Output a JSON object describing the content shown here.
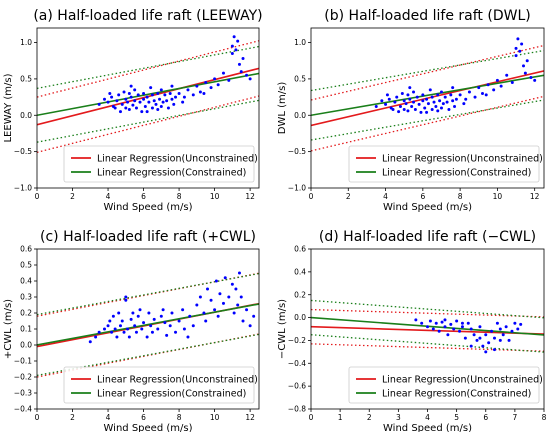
{
  "chart_data": [
    {
      "type": "scatter",
      "title": "(a) Half-loaded life raft (LEEWAY)",
      "xlabel": "Wind Speed (m/s)",
      "ylabel": "LEEWAY (m/s)",
      "xlim": [
        0,
        12.5
      ],
      "ylim": [
        -1.0,
        1.2
      ],
      "xticks": [
        0,
        2,
        4,
        6,
        8,
        10,
        12
      ],
      "yticks": [
        -1.0,
        -0.5,
        0.0,
        0.5,
        1.0
      ],
      "ytick_labels": [
        "−1.0",
        "−0.5",
        "0.0",
        "0.5",
        "1.0"
      ],
      "legend_position": "lower-right",
      "regression": {
        "unconstrained": {
          "name": "Linear Regression(Unconstrained)",
          "intercept": -0.13,
          "slope": 0.062,
          "band": 0.38,
          "color": "#e31a1c"
        },
        "constrained": {
          "name": "Linear Regression(Constrained)",
          "intercept": 0.0,
          "slope": 0.046,
          "band": 0.37,
          "color": "#1a7f1a"
        }
      },
      "points": [
        [
          4.0,
          0.18
        ],
        [
          4.2,
          0.25
        ],
        [
          4.3,
          0.12
        ],
        [
          4.5,
          0.2
        ],
        [
          4.6,
          0.28
        ],
        [
          4.7,
          0.05
        ],
        [
          4.8,
          0.15
        ],
        [
          4.9,
          0.32
        ],
        [
          5.0,
          0.1
        ],
        [
          5.0,
          0.22
        ],
        [
          5.1,
          0.18
        ],
        [
          5.2,
          0.3
        ],
        [
          5.2,
          0.08
        ],
        [
          5.3,
          0.25
        ],
        [
          5.4,
          0.14
        ],
        [
          5.5,
          0.35
        ],
        [
          5.5,
          0.2
        ],
        [
          5.6,
          0.1
        ],
        [
          5.7,
          0.28
        ],
        [
          5.8,
          0.18
        ],
        [
          5.9,
          0.05
        ],
        [
          6.0,
          0.22
        ],
        [
          6.0,
          0.3
        ],
        [
          6.1,
          0.12
        ],
        [
          6.2,
          0.25
        ],
        [
          6.3,
          0.18
        ],
        [
          6.4,
          0.38
        ],
        [
          6.5,
          0.1
        ],
        [
          6.5,
          0.28
        ],
        [
          6.6,
          0.2
        ],
        [
          6.7,
          0.15
        ],
        [
          6.8,
          0.3
        ],
        [
          6.9,
          0.22
        ],
        [
          7.0,
          0.12
        ],
        [
          7.0,
          0.35
        ],
        [
          7.1,
          0.18
        ],
        [
          7.2,
          0.28
        ],
        [
          7.3,
          0.2
        ],
        [
          7.4,
          0.1
        ],
        [
          7.5,
          0.3
        ],
        [
          7.6,
          0.22
        ],
        [
          7.7,
          0.15
        ],
        [
          7.8,
          0.25
        ],
        [
          8.0,
          0.3
        ],
        [
          8.2,
          0.18
        ],
        [
          8.5,
          0.35
        ],
        [
          8.8,
          0.28
        ],
        [
          9.0,
          0.4
        ],
        [
          9.2,
          0.32
        ],
        [
          9.5,
          0.45
        ],
        [
          9.8,
          0.38
        ],
        [
          10.0,
          0.5
        ],
        [
          10.2,
          0.42
        ],
        [
          10.5,
          0.58
        ],
        [
          10.8,
          0.48
        ],
        [
          11.0,
          0.85
        ],
        [
          11.0,
          0.95
        ],
        [
          11.1,
          1.08
        ],
        [
          11.2,
          0.9
        ],
        [
          11.3,
          1.02
        ],
        [
          11.4,
          0.7
        ],
        [
          11.5,
          0.6
        ],
        [
          11.6,
          0.78
        ],
        [
          11.8,
          0.55
        ],
        [
          12.0,
          0.5
        ],
        [
          3.5,
          0.15
        ],
        [
          3.8,
          0.22
        ],
        [
          4.1,
          0.3
        ],
        [
          4.4,
          0.1
        ],
        [
          5.3,
          0.4
        ],
        [
          6.2,
          0.05
        ],
        [
          6.8,
          0.08
        ],
        [
          7.6,
          0.4
        ],
        [
          8.3,
          0.25
        ],
        [
          9.4,
          0.3
        ]
      ]
    },
    {
      "type": "scatter",
      "title": "(b) Half-loaded life raft (DWL)",
      "xlabel": "Wind Speed (m/s)",
      "ylabel": "DWL (m/s)",
      "xlim": [
        0,
        12.5
      ],
      "ylim": [
        -1.0,
        1.2
      ],
      "xticks": [
        0,
        2,
        4,
        6,
        8,
        10,
        12
      ],
      "yticks": [
        -1.0,
        -0.5,
        0.0,
        0.5,
        1.0
      ],
      "ytick_labels": [
        "−1.0",
        "−0.5",
        "0.0",
        "0.5",
        "1.0"
      ],
      "legend_position": "lower-right",
      "regression": {
        "unconstrained": {
          "name": "Linear Regression(Unconstrained)",
          "intercept": -0.14,
          "slope": 0.06,
          "band": 0.35,
          "color": "#e31a1c"
        },
        "constrained": {
          "name": "Linear Regression(Constrained)",
          "intercept": 0.0,
          "slope": 0.044,
          "band": 0.34,
          "color": "#1a7f1a"
        }
      },
      "points": [
        [
          4.0,
          0.15
        ],
        [
          4.2,
          0.22
        ],
        [
          4.3,
          0.1
        ],
        [
          4.5,
          0.18
        ],
        [
          4.6,
          0.25
        ],
        [
          4.7,
          0.05
        ],
        [
          4.8,
          0.12
        ],
        [
          4.9,
          0.3
        ],
        [
          5.0,
          0.08
        ],
        [
          5.0,
          0.2
        ],
        [
          5.1,
          0.16
        ],
        [
          5.2,
          0.28
        ],
        [
          5.2,
          0.06
        ],
        [
          5.3,
          0.22
        ],
        [
          5.4,
          0.12
        ],
        [
          5.5,
          0.32
        ],
        [
          5.5,
          0.18
        ],
        [
          5.6,
          0.08
        ],
        [
          5.7,
          0.25
        ],
        [
          5.8,
          0.15
        ],
        [
          5.9,
          0.04
        ],
        [
          6.0,
          0.2
        ],
        [
          6.0,
          0.28
        ],
        [
          6.1,
          0.1
        ],
        [
          6.2,
          0.22
        ],
        [
          6.3,
          0.16
        ],
        [
          6.4,
          0.35
        ],
        [
          6.5,
          0.08
        ],
        [
          6.5,
          0.25
        ],
        [
          6.6,
          0.18
        ],
        [
          6.7,
          0.12
        ],
        [
          6.8,
          0.28
        ],
        [
          6.9,
          0.2
        ],
        [
          7.0,
          0.1
        ],
        [
          7.0,
          0.32
        ],
        [
          7.1,
          0.16
        ],
        [
          7.2,
          0.25
        ],
        [
          7.3,
          0.18
        ],
        [
          7.4,
          0.08
        ],
        [
          7.5,
          0.28
        ],
        [
          7.6,
          0.2
        ],
        [
          7.7,
          0.12
        ],
        [
          7.8,
          0.22
        ],
        [
          8.0,
          0.28
        ],
        [
          8.2,
          0.16
        ],
        [
          8.5,
          0.32
        ],
        [
          8.8,
          0.25
        ],
        [
          9.0,
          0.38
        ],
        [
          9.2,
          0.3
        ],
        [
          9.5,
          0.42
        ],
        [
          9.8,
          0.35
        ],
        [
          10.0,
          0.48
        ],
        [
          10.2,
          0.4
        ],
        [
          10.5,
          0.55
        ],
        [
          10.8,
          0.45
        ],
        [
          11.0,
          0.82
        ],
        [
          11.0,
          0.92
        ],
        [
          11.1,
          1.05
        ],
        [
          11.2,
          0.88
        ],
        [
          11.3,
          0.98
        ],
        [
          11.4,
          0.68
        ],
        [
          11.5,
          0.58
        ],
        [
          11.6,
          0.75
        ],
        [
          11.8,
          0.52
        ],
        [
          12.0,
          0.48
        ],
        [
          3.5,
          0.12
        ],
        [
          3.8,
          0.2
        ],
        [
          4.1,
          0.28
        ],
        [
          4.4,
          0.08
        ],
        [
          5.3,
          0.38
        ],
        [
          6.2,
          0.04
        ],
        [
          6.8,
          0.06
        ],
        [
          7.6,
          0.38
        ],
        [
          8.3,
          0.22
        ],
        [
          9.4,
          0.28
        ]
      ]
    },
    {
      "type": "scatter",
      "title": "(c) Half-loaded life raft (+CWL)",
      "xlabel": "Wind Speed (m/s)",
      "ylabel": "+CWL (m/s)",
      "xlim": [
        0,
        12.5
      ],
      "ylim": [
        -0.4,
        0.6
      ],
      "xticks": [
        0,
        2,
        4,
        6,
        8,
        10,
        12
      ],
      "yticks": [
        -0.4,
        -0.3,
        -0.2,
        -0.1,
        0.0,
        0.1,
        0.2,
        0.3,
        0.4,
        0.5,
        0.6
      ],
      "ytick_labels": [
        "−0.4",
        "−0.3",
        "−0.2",
        "−0.1",
        "0.0",
        "0.1",
        "0.2",
        "0.3",
        "0.4",
        "0.5",
        "0.6"
      ],
      "legend_position": "lower-right",
      "regression": {
        "unconstrained": {
          "name": "Linear Regression(Unconstrained)",
          "intercept": -0.01,
          "slope": 0.0215,
          "band": 0.19,
          "color": "#e31a1c"
        },
        "constrained": {
          "name": "Linear Regression(Constrained)",
          "intercept": 0.0,
          "slope": 0.0205,
          "band": 0.19,
          "color": "#1a7f1a"
        }
      },
      "points": [
        [
          3.0,
          0.02
        ],
        [
          3.3,
          0.05
        ],
        [
          3.5,
          0.08
        ],
        [
          3.8,
          0.1
        ],
        [
          4.0,
          0.12
        ],
        [
          4.1,
          0.15
        ],
        [
          4.2,
          0.08
        ],
        [
          4.3,
          0.18
        ],
        [
          4.4,
          0.1
        ],
        [
          4.5,
          0.05
        ],
        [
          4.6,
          0.2
        ],
        [
          4.7,
          0.12
        ],
        [
          4.8,
          0.15
        ],
        [
          4.9,
          0.08
        ],
        [
          5.0,
          0.28
        ],
        [
          5.0,
          0.3
        ],
        [
          5.1,
          0.1
        ],
        [
          5.2,
          0.05
        ],
        [
          5.3,
          0.16
        ],
        [
          5.4,
          0.2
        ],
        [
          5.5,
          0.12
        ],
        [
          5.6,
          0.08
        ],
        [
          5.7,
          0.18
        ],
        [
          5.8,
          0.22
        ],
        [
          5.9,
          0.1
        ],
        [
          6.0,
          0.14
        ],
        [
          6.2,
          0.05
        ],
        [
          6.3,
          0.2
        ],
        [
          6.4,
          0.12
        ],
        [
          6.5,
          0.08
        ],
        [
          6.6,
          0.16
        ],
        [
          6.8,
          0.1
        ],
        [
          7.0,
          0.18
        ],
        [
          7.1,
          0.22
        ],
        [
          7.2,
          0.14
        ],
        [
          7.3,
          0.06
        ],
        [
          7.5,
          0.12
        ],
        [
          7.6,
          0.2
        ],
        [
          7.8,
          0.08
        ],
        [
          8.0,
          0.15
        ],
        [
          8.2,
          0.22
        ],
        [
          8.3,
          0.1
        ],
        [
          8.5,
          0.05
        ],
        [
          8.6,
          0.18
        ],
        [
          8.8,
          0.12
        ],
        [
          9.0,
          0.25
        ],
        [
          9.2,
          0.3
        ],
        [
          9.4,
          0.2
        ],
        [
          9.5,
          0.15
        ],
        [
          9.6,
          0.35
        ],
        [
          9.8,
          0.28
        ],
        [
          10.0,
          0.22
        ],
        [
          10.1,
          0.4
        ],
        [
          10.2,
          0.18
        ],
        [
          10.3,
          0.32
        ],
        [
          10.5,
          0.26
        ],
        [
          10.6,
          0.42
        ],
        [
          10.8,
          0.3
        ],
        [
          11.0,
          0.38
        ],
        [
          11.1,
          0.2
        ],
        [
          11.2,
          0.35
        ],
        [
          11.3,
          0.25
        ],
        [
          11.4,
          0.45
        ],
        [
          11.5,
          0.3
        ],
        [
          11.6,
          0.15
        ],
        [
          11.8,
          0.22
        ],
        [
          12.0,
          0.12
        ],
        [
          12.2,
          0.18
        ]
      ]
    },
    {
      "type": "scatter",
      "title": "(d) Half-loaded life raft (−CWL)",
      "xlabel": "Wind Speed (m/s)",
      "ylabel": "−CWL (m/s)",
      "xlim": [
        0,
        8
      ],
      "ylim": [
        -0.8,
        0.6
      ],
      "xticks": [
        0,
        1,
        2,
        3,
        4,
        5,
        6,
        7,
        8
      ],
      "yticks": [
        -0.8,
        -0.6,
        -0.4,
        -0.2,
        0.0,
        0.2,
        0.4,
        0.6
      ],
      "ytick_labels": [
        "−0.8",
        "−0.6",
        "−0.4",
        "−0.2",
        "0.0",
        "0.2",
        "0.4",
        "0.6"
      ],
      "legend_position": "lower-right",
      "regression": {
        "unconstrained": {
          "name": "Linear Regression(Unconstrained)",
          "intercept": -0.08,
          "slope": -0.008,
          "band": 0.15,
          "color": "#e31a1c"
        },
        "constrained": {
          "name": "Linear Regression(Constrained)",
          "intercept": 0.0,
          "slope": -0.019,
          "band": 0.15,
          "color": "#1a7f1a"
        }
      },
      "points": [
        [
          3.6,
          -0.02
        ],
        [
          3.8,
          -0.05
        ],
        [
          4.0,
          -0.08
        ],
        [
          4.1,
          -0.03
        ],
        [
          4.2,
          -0.1
        ],
        [
          4.3,
          -0.05
        ],
        [
          4.4,
          -0.12
        ],
        [
          4.5,
          -0.04
        ],
        [
          4.6,
          -0.08
        ],
        [
          4.7,
          -0.15
        ],
        [
          4.8,
          -0.06
        ],
        [
          4.9,
          -0.1
        ],
        [
          5.0,
          -0.03
        ],
        [
          5.1,
          -0.12
        ],
        [
          5.2,
          -0.08
        ],
        [
          5.3,
          -0.18
        ],
        [
          5.4,
          -0.05
        ],
        [
          5.5,
          -0.1
        ],
        [
          5.6,
          -0.15
        ],
        [
          5.7,
          -0.2
        ],
        [
          5.8,
          -0.08
        ],
        [
          5.9,
          -0.25
        ],
        [
          6.0,
          -0.3
        ],
        [
          6.1,
          -0.22
        ],
        [
          6.2,
          -0.12
        ],
        [
          6.3,
          -0.18
        ],
        [
          6.4,
          -0.05
        ],
        [
          6.5,
          -0.1
        ],
        [
          6.6,
          -0.15
        ],
        [
          6.7,
          -0.08
        ],
        [
          6.8,
          -0.2
        ],
        [
          6.9,
          -0.12
        ],
        [
          7.0,
          -0.05
        ],
        [
          7.1,
          -0.1
        ],
        [
          7.2,
          -0.06
        ],
        [
          6.0,
          -0.15
        ],
        [
          5.5,
          -0.25
        ],
        [
          6.3,
          -0.28
        ],
        [
          5.8,
          -0.18
        ],
        [
          4.6,
          -0.02
        ],
        [
          5.2,
          -0.05
        ],
        [
          6.5,
          -0.2
        ]
      ]
    }
  ]
}
